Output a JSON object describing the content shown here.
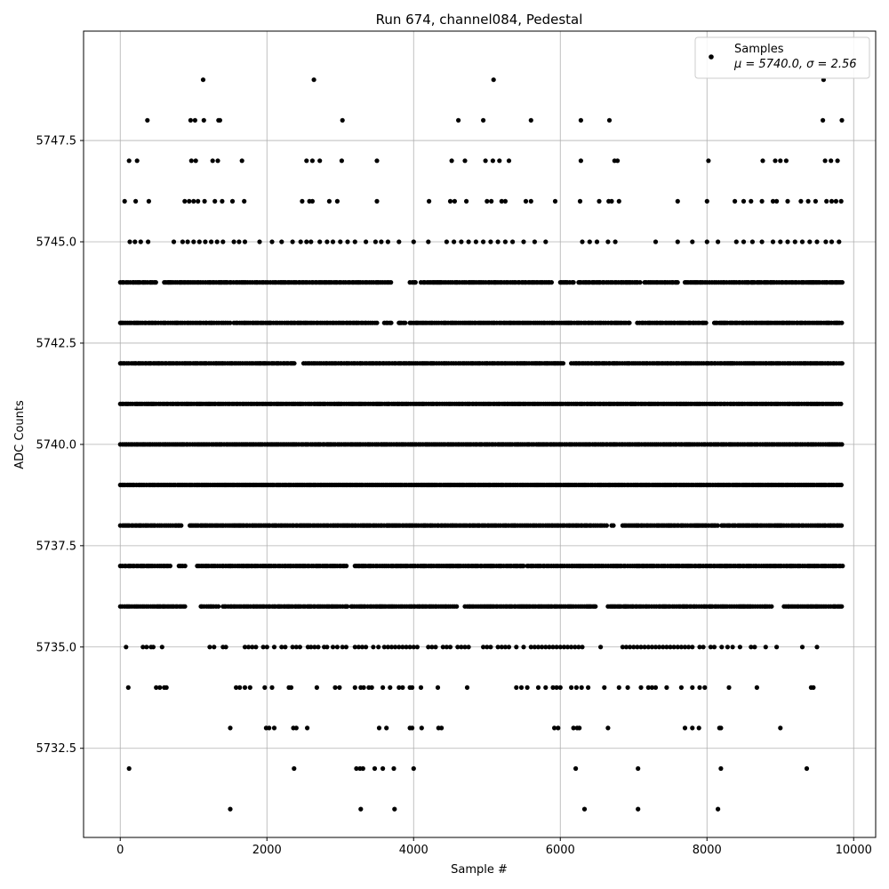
{
  "chart_data": {
    "type": "scatter",
    "title": "Run 674, channel084, Pedestal",
    "xlabel": "Sample #",
    "ylabel": "ADC Counts",
    "xlim": [
      -500,
      10300
    ],
    "ylim": [
      5730.3,
      5750.2
    ],
    "xticks": [
      0,
      2000,
      4000,
      6000,
      8000,
      10000
    ],
    "yticks": [
      5732.5,
      5735.0,
      5737.5,
      5740.0,
      5742.5,
      5745.0,
      5747.5
    ],
    "xtick_labels": [
      "0",
      "2000",
      "4000",
      "6000",
      "8000",
      "10000"
    ],
    "ytick_labels": [
      "5732.5",
      "5735.0",
      "5737.5",
      "5740.0",
      "5742.5",
      "5745.0",
      "5747.5"
    ],
    "grid": true,
    "legend": {
      "placement": "top-right",
      "label": "Samples",
      "stats": "μ = 5740.0, σ = 2.56"
    },
    "marker_color": "#000000",
    "series": [
      {
        "name": "Samples",
        "x_range": [
          0,
          9850
        ],
        "mean": 5740.0,
        "sigma": 2.56,
        "levels": [
          {
            "y": 5749,
            "x": [
              1130,
              2640,
              5090,
              9590
            ]
          },
          {
            "y": 5748,
            "x": [
              370,
              960,
              1020,
              1140,
              1340,
              1360,
              3030,
              4610,
              4950,
              5600,
              6280,
              6670,
              9580,
              9840
            ]
          },
          {
            "y": 5747,
            "x": [
              120,
              230,
              1030,
              970,
              1260,
              1330,
              1660,
              2540,
              2620,
              2720,
              3020,
              3500,
              4520,
              4700,
              4980,
              5080,
              5170,
              5300,
              6280,
              6740,
              6780,
              8020,
              8760,
              8930,
              9000,
              9080,
              9610,
              9690,
              9780
            ]
          },
          {
            "y": 5746,
            "x": [
              60,
              210,
              390,
              880,
              940,
              1000,
              1060,
              1150,
              1290,
              1390,
              1530,
              1690,
              2480,
              2580,
              2620,
              2850,
              2960,
              3500,
              4210,
              4500,
              4560,
              4720,
              5000,
              5060,
              5200,
              5250,
              5530,
              5600,
              5930,
              6270,
              6530,
              6660,
              6700,
              6800,
              7600,
              8000,
              8380,
              8500,
              8600,
              8750,
              8900,
              8950,
              9100,
              9280,
              9380,
              9480,
              9630,
              9700,
              9760,
              9830
            ]
          },
          {
            "y": 5745,
            "x": [
              130,
              200,
              280,
              380,
              730,
              850,
              920,
              1000,
              1080,
              1160,
              1240,
              1320,
              1400,
              1550,
              1620,
              1700,
              1900,
              2070,
              2200,
              2350,
              2460,
              2540,
              2600,
              2720,
              2820,
              2900,
              3000,
              3100,
              3200,
              3350,
              3480,
              3560,
              3650,
              3800,
              4000,
              4200,
              4450,
              4550,
              4650,
              4750,
              4850,
              4950,
              5050,
              5150,
              5250,
              5350,
              5500,
              5650,
              5800,
              6300,
              6400,
              6500,
              6650,
              6750,
              7300,
              7600,
              7800,
              8000,
              8150,
              8400,
              8500,
              8620,
              8750,
              8900,
              9000,
              9100,
              9200,
              9300,
              9400,
              9500,
              9620,
              9700,
              9800
            ]
          },
          {
            "y": 5744,
            "x_dense": [
              [
                0,
                500
              ],
              [
                600,
                3700
              ],
              [
                3950,
                4050
              ],
              [
                4100,
                5900
              ],
              [
                6000,
                6200
              ],
              [
                6250,
                7100
              ],
              [
                7150,
                7600
              ],
              [
                7700,
                9850
              ]
            ]
          },
          {
            "y": 5743,
            "x_dense": [
              [
                0,
                1500
              ],
              [
                1550,
                3500
              ],
              [
                3600,
                3700
              ],
              [
                3800,
                3900
              ],
              [
                3950,
                6950
              ],
              [
                7050,
                8000
              ],
              [
                8100,
                9850
              ]
            ]
          },
          {
            "y": 5742,
            "x_dense": [
              [
                0,
                2400
              ],
              [
                2500,
                6050
              ],
              [
                6150,
                9850
              ]
            ]
          },
          {
            "y": 5741,
            "x_dense": [
              [
                0,
                9850
              ]
            ]
          },
          {
            "y": 5740,
            "x_dense": [
              [
                0,
                9850
              ]
            ]
          },
          {
            "y": 5739,
            "x_dense": [
              [
                0,
                9850
              ]
            ]
          },
          {
            "y": 5738,
            "x_dense": [
              [
                0,
                850
              ],
              [
                950,
                6650
              ],
              [
                6700,
                6750
              ],
              [
                6850,
                8150
              ],
              [
                8200,
                9850
              ]
            ]
          },
          {
            "y": 5737,
            "x_dense": [
              [
                0,
                700
              ],
              [
                800,
                900
              ],
              [
                1050,
                3100
              ],
              [
                3200,
                5500
              ],
              [
                5550,
                9850
              ]
            ]
          },
          {
            "y": 5736,
            "x_dense": [
              [
                0,
                900
              ],
              [
                1100,
                1350
              ],
              [
                1400,
                3100
              ],
              [
                3150,
                4600
              ],
              [
                4700,
                6500
              ],
              [
                6650,
                8900
              ],
              [
                9050,
                9850
              ]
            ]
          },
          {
            "y": 5735,
            "x": [
              80,
              310,
              360,
              420,
              450,
              570,
              1220,
              1280,
              1400,
              1440,
              1700,
              1750,
              1800,
              1850,
              1950,
              2000,
              2100,
              2200,
              2250,
              2350,
              2400,
              2450,
              2560,
              2600,
              2650,
              2700,
              2780,
              2820,
              2900,
              2960,
              3030,
              3080,
              3200,
              3250,
              3300,
              3350,
              3450,
              3520,
              3600,
              3650,
              3700,
              3750,
              3800,
              3850,
              3900,
              3950,
              4000,
              4050,
              4200,
              4250,
              4300,
              4400,
              4450,
              4500,
              4600,
              4650,
              4700,
              4750,
              4950,
              5000,
              5050,
              5150,
              5200,
              5250,
              5300,
              5400,
              5500,
              5600,
              5650,
              5700,
              5750,
              5800,
              5850,
              5900,
              5950,
              6000,
              6050,
              6100,
              6150,
              6200,
              6250,
              6300,
              6550,
              6850,
              6900,
              6950,
              7000,
              7050,
              7100,
              7150,
              7200,
              7250,
              7300,
              7350,
              7400,
              7450,
              7500,
              7550,
              7600,
              7650,
              7700,
              7750,
              7800,
              7900,
              7950,
              8050,
              8100,
              8200,
              8280,
              8350,
              8450,
              8600,
              8650,
              8800,
              8950,
              9300,
              9500
            ]
          },
          {
            "y": 5734,
            "x": [
              110,
              490,
              540,
              600,
              630,
              1580,
              1630,
              1700,
              1770,
              1970,
              2070,
              2300,
              2330,
              2680,
              2930,
              2990,
              3200,
              3280,
              3320,
              3390,
              3430,
              3580,
              3680,
              3800,
              3850,
              3950,
              3980,
              4100,
              4330,
              4730,
              5400,
              5470,
              5550,
              5700,
              5800,
              5900,
              5950,
              6000,
              6150,
              6220,
              6290,
              6380,
              6600,
              6800,
              6920,
              7100,
              7200,
              7250,
              7300,
              7450,
              7650,
              7800,
              7900,
              7970,
              8300,
              8680,
              9420,
              9450
            ]
          },
          {
            "y": 5733,
            "x": [
              1500,
              1990,
              2030,
              2100,
              2360,
              2400,
              2550,
              3530,
              3630,
              3950,
              3980,
              4110,
              4340,
              4380,
              5920,
              5970,
              6180,
              6230,
              6260,
              6650,
              7700,
              7800,
              7890,
              8170,
              8190,
              9000
            ]
          },
          {
            "y": 5732,
            "x": [
              120,
              2370,
              3220,
              3270,
              3310,
              3470,
              3580,
              3730,
              4000,
              6210,
              7060,
              8190,
              9360
            ]
          },
          {
            "y": 5731,
            "x": [
              1500,
              3280,
              3740,
              6330,
              7060,
              8150
            ]
          }
        ]
      }
    ]
  }
}
